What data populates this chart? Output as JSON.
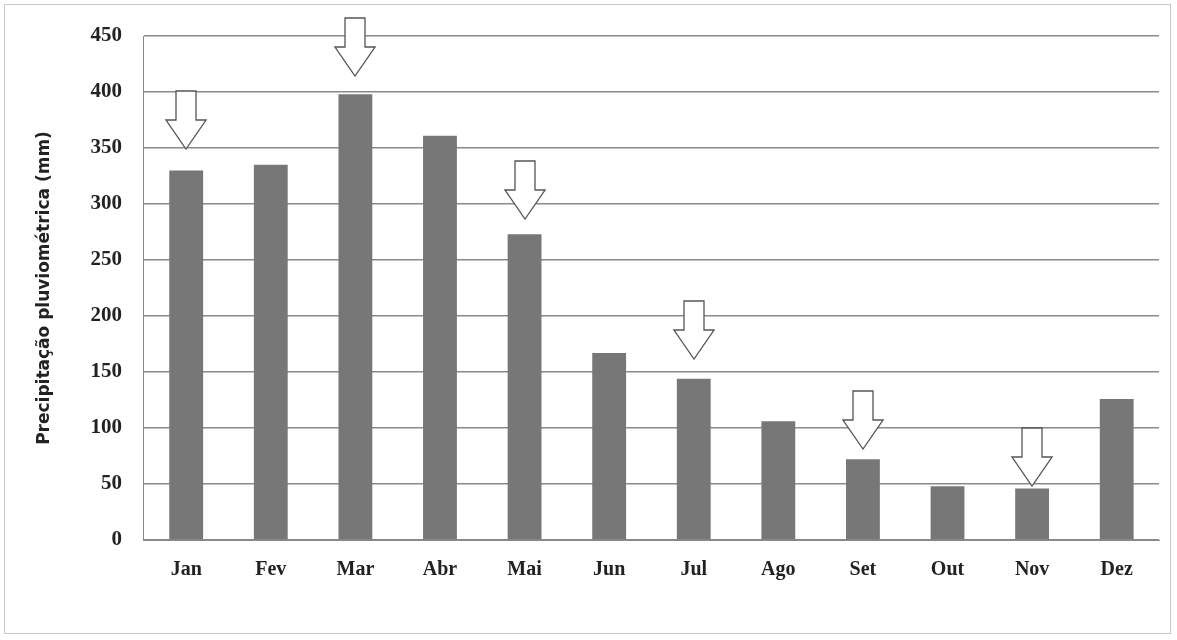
{
  "chart_data": {
    "type": "bar",
    "ylabel": "Precipitação pluviométrica (mm)",
    "categories": [
      "Jan",
      "Fev",
      "Mar",
      "Abr",
      "Mai",
      "Jun",
      "Jul",
      "Ago",
      "Set",
      "Out",
      "Nov",
      "Dez"
    ],
    "values": [
      330,
      335,
      398,
      361,
      273,
      167,
      144,
      106,
      72,
      48,
      46,
      126
    ],
    "color": "#777777",
    "ylim": [
      0,
      450
    ],
    "yticks": [
      0,
      50,
      100,
      150,
      200,
      250,
      300,
      350,
      400,
      450
    ],
    "grid": "y",
    "legend": false
  }
}
